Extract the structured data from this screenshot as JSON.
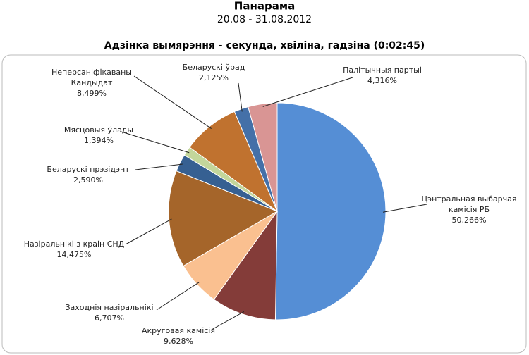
{
  "chart_data": {
    "type": "pie",
    "title": "Панарама",
    "subtitle": "20.08 - 31.08.2012",
    "subtitle2": "Адзінка вымярэння - секунда, хвіліна, гадзіна (0:02:45)",
    "categories": [
      "Цэнтральная выбарчая\nкамісія РБ",
      "Акруговая камісія",
      "Заходнія назіральнікі",
      "Назіральнікі з краін СНД",
      "Беларускі прэзідэнт",
      "Мясцовыя ўлады",
      "Неперсаніфікаваны\nКандыдат",
      "Беларускі ўрад",
      "Палітычныя партыі"
    ],
    "values": [
      50.266,
      9.628,
      6.707,
      14.475,
      2.59,
      1.394,
      8.499,
      2.125,
      4.316
    ],
    "value_labels": [
      "50,266%",
      "9,628%",
      "6,707%",
      "14,475%",
      "2,590%",
      "1,394%",
      "8,499%",
      "2,125%",
      "4,316%"
    ],
    "colors": [
      "#558ed5",
      "#843c39",
      "#fac090",
      "#a5652a",
      "#366092",
      "#c3d69b",
      "#c0722f",
      "#4470a8",
      "#d99594"
    ]
  }
}
